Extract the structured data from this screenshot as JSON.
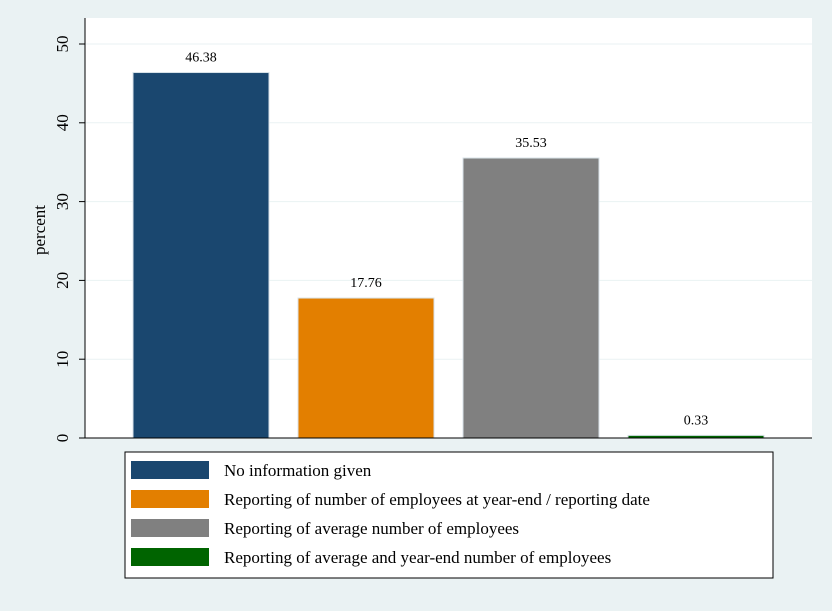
{
  "chart_data": {
    "type": "bar",
    "title": "",
    "xlabel": "",
    "ylabel": "percent",
    "ylim": [
      0,
      50
    ],
    "yticks": [
      0,
      10,
      20,
      30,
      40,
      50
    ],
    "grid": true,
    "legend_position": "bottom",
    "categories": [
      "No information given",
      "Reporting of number of employees at year-end / reporting date",
      "Reporting of average number of employees",
      "Reporting of average and year-end number of employees"
    ],
    "values": [
      46.38,
      17.76,
      35.53,
      0.33
    ],
    "data_labels": [
      "46.38",
      "17.76",
      "35.53",
      "0.33"
    ],
    "colors": [
      "#1a476f",
      "#e37f00",
      "#808080",
      "#006400"
    ]
  }
}
